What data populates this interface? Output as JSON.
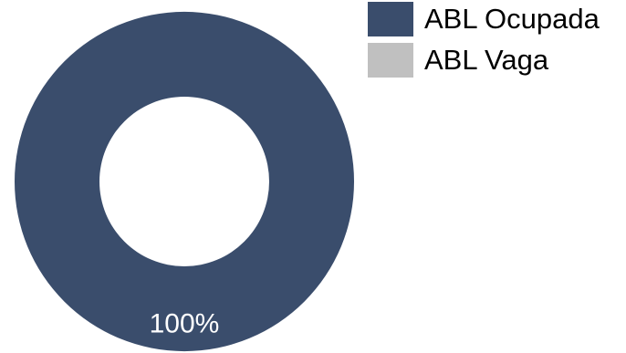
{
  "chart_data": {
    "type": "pie",
    "variant": "donut",
    "title": "",
    "categories": [
      "ABL Ocupada",
      "ABL Vaga"
    ],
    "values": [
      100,
      0
    ],
    "data_labels": [
      "100%",
      ""
    ],
    "colors": [
      "#3A4D6C",
      "#C0C0C0"
    ],
    "legend_position": "top-right"
  }
}
